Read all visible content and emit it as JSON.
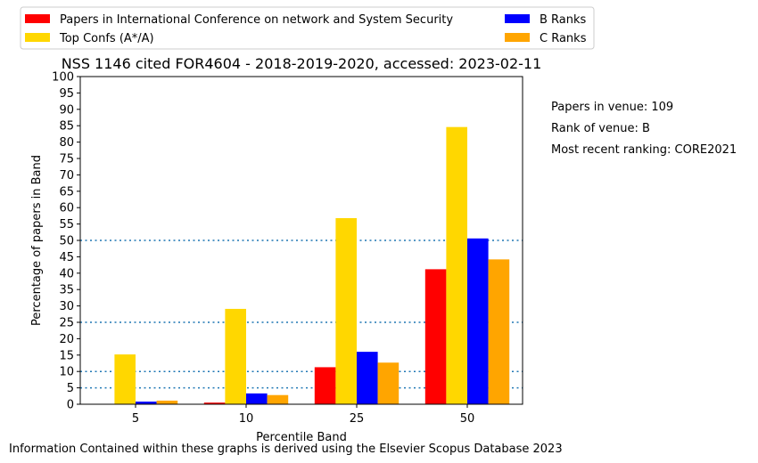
{
  "chart_data": {
    "type": "bar",
    "title": "NSS 1146 cited FOR4604 - 2018-2019-2020, accessed: 2023-02-11",
    "xlabel": "Percentile Band",
    "ylabel": "Percentage of papers in Band",
    "categories": [
      "5",
      "10",
      "25",
      "50"
    ],
    "ylim": [
      0,
      100
    ],
    "yticks": [
      "0",
      "5",
      "10",
      "15",
      "20",
      "25",
      "30",
      "35",
      "40",
      "45",
      "50",
      "55",
      "60",
      "65",
      "70",
      "75",
      "80",
      "85",
      "90",
      "95",
      "100"
    ],
    "reference_lines": [
      5,
      10,
      25,
      50
    ],
    "legend_position": "top-left, above the axes",
    "series": [
      {
        "name": "Papers in International Conference on network and System Security",
        "color": "#ff0000",
        "values": [
          0,
          0.5,
          11.3,
          41.2
        ]
      },
      {
        "name": "Top Confs (A*/A)",
        "color": "#ffd700",
        "values": [
          15.2,
          29.1,
          56.8,
          84.6
        ]
      },
      {
        "name": "B Ranks",
        "color": "#0000ff",
        "values": [
          0.8,
          3.3,
          16.0,
          50.6
        ]
      },
      {
        "name": "C Ranks",
        "color": "#ffa500",
        "values": [
          1.1,
          2.8,
          12.7,
          44.2
        ]
      }
    ]
  },
  "info": {
    "papers_in_venue": "Papers in venue: 109",
    "rank_of_venue": "Rank of venue: B",
    "recent_ranking": "Most recent ranking: CORE2021"
  },
  "footer": "Information Contained within these graphs is derived using the Elsevier Scopus Database 2023"
}
